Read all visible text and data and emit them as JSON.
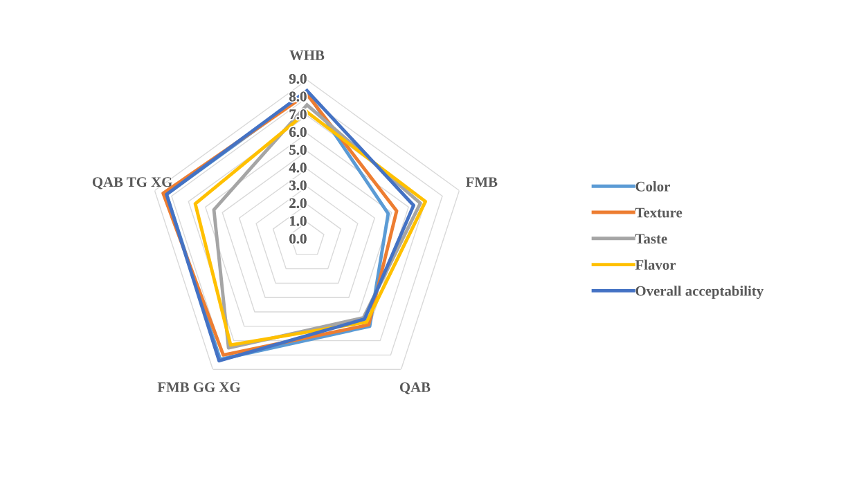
{
  "chart_data": {
    "type": "radar",
    "categories": [
      "WHB",
      "FMB",
      "QAB",
      "FMB GG XG",
      "QAB TG XG"
    ],
    "ylim": [
      0,
      9
    ],
    "yticks": [
      {
        "value": 0,
        "label": "0.0"
      },
      {
        "value": 1,
        "label": "1.0"
      },
      {
        "value": 2,
        "label": "2.0"
      },
      {
        "value": 3,
        "label": "3.0"
      },
      {
        "value": 4,
        "label": "4.0"
      },
      {
        "value": 5,
        "label": "5.0"
      },
      {
        "value": 6,
        "label": "6.0"
      },
      {
        "value": 7,
        "label": "7.0"
      },
      {
        "value": 8,
        "label": "8.0"
      },
      {
        "value": 9,
        "label": "9.0"
      }
    ],
    "grid": true,
    "legend": "right",
    "series": [
      {
        "name": "Color",
        "color": "#5b9bd5",
        "values": [
          8.3,
          4.8,
          6.0,
          8.3,
          8.3
        ]
      },
      {
        "name": "Texture",
        "color": "#ed7d31",
        "values": [
          8.2,
          5.3,
          5.9,
          8.0,
          8.5
        ]
      },
      {
        "name": "Taste",
        "color": "#a5a5a5",
        "values": [
          7.6,
          6.7,
          5.4,
          7.5,
          5.5
        ]
      },
      {
        "name": "Flavor",
        "color": "#ffc000",
        "values": [
          7.2,
          7.0,
          5.7,
          7.3,
          6.6
        ]
      },
      {
        "name": "Overall acceptability",
        "color": "#4472c4",
        "values": [
          8.4,
          6.3,
          5.5,
          8.4,
          8.3
        ]
      }
    ]
  }
}
